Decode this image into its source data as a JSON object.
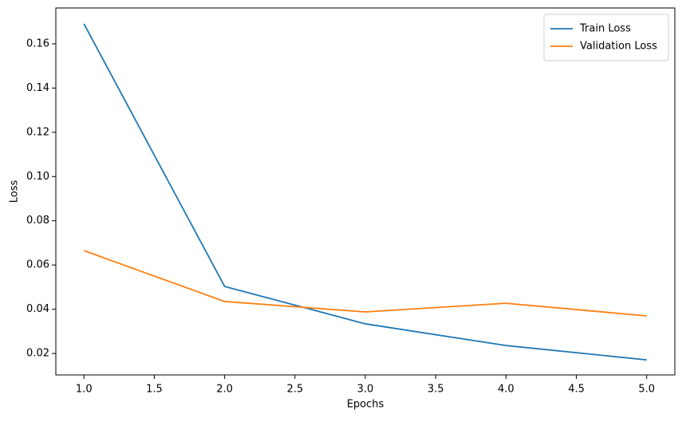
{
  "chart_data": {
    "type": "line",
    "x_label": "Epochs",
    "y_label": "Loss",
    "x": [
      1,
      2,
      3,
      4,
      5
    ],
    "series": [
      {
        "name": "Train Loss",
        "color": "#1f77b4",
        "values": [
          0.169,
          0.0503,
          0.0334,
          0.0236,
          0.0171
        ]
      },
      {
        "name": "Validation Loss",
        "color": "#ff7f0e",
        "values": [
          0.0665,
          0.0435,
          0.0388,
          0.0427,
          0.037
        ]
      }
    ],
    "xlim": [
      0.8,
      5.2
    ],
    "xticks": [
      {
        "value": 1,
        "label": "1.0"
      },
      {
        "value": 1.5,
        "label": "1.5"
      },
      {
        "value": 2,
        "label": "2.0"
      },
      {
        "value": 2.5,
        "label": "2.5"
      },
      {
        "value": 3,
        "label": "3.0"
      },
      {
        "value": 3.5,
        "label": "3.5"
      },
      {
        "value": 4,
        "label": "4.0"
      },
      {
        "value": 4.5,
        "label": "4.5"
      },
      {
        "value": 5,
        "label": "5.0"
      }
    ],
    "ylim": [
      0.0103,
      0.1762
    ],
    "yticks": [
      0.02,
      0.04,
      0.06,
      0.08,
      {
        "value": 0.1,
        "label": "0.10"
      },
      0.12,
      0.14,
      0.16
    ],
    "legend": "upper right",
    "grid": false
  }
}
